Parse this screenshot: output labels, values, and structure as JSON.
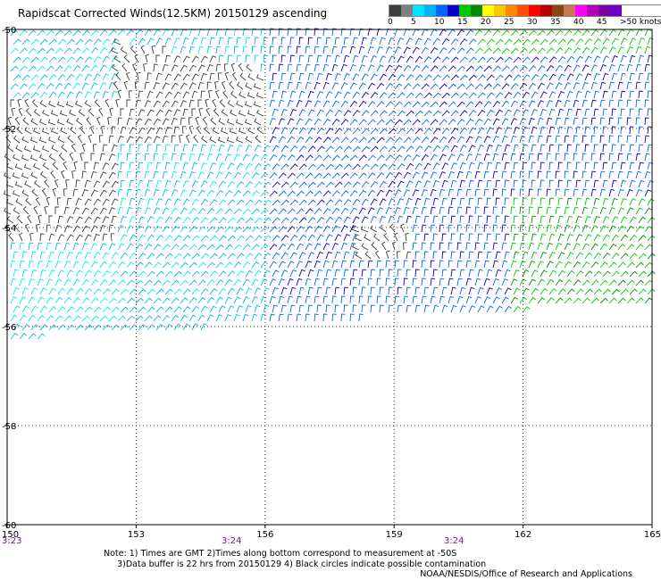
{
  "title": "Rapidscat Corrected Winds(12.5KM) 20150129 ascending",
  "speed_scale": {
    "labels": [
      "0",
      "5",
      "10",
      "15",
      "20",
      "25",
      "30",
      "35",
      "40",
      "45",
      ">50 knots"
    ],
    "colors": [
      "#3c3c3c",
      "#7f7f7f",
      "#00e5ff",
      "#00b4ff",
      "#0064ff",
      "#0000c8",
      "#00c800",
      "#008c00",
      "#ffff00",
      "#ffc800",
      "#ff8c00",
      "#ff5000",
      "#ff0000",
      "#b40000",
      "#8b4513",
      "#c87850",
      "#ff00ff",
      "#b400b4",
      "#7a00a0",
      "#6a00c8"
    ]
  },
  "map": {
    "lon_labels": [
      "150",
      "153",
      "156",
      "159",
      "162",
      "165"
    ],
    "lat_labels": [
      "-50",
      "-52",
      "-54",
      "-56",
      "-58",
      "-60"
    ],
    "time_labels": [
      "3:23",
      "3:24",
      "3:24"
    ]
  },
  "notes": {
    "line1": "Note: 1) Times are GMT 2)Times along bottom correspond to measurement at -50S",
    "line2": "3)Data buffer is 22 hrs from 20150129 4) Black circles indicate possible contamination"
  },
  "credit": "NOAA/NESDIS/Office of Research and Applications"
}
